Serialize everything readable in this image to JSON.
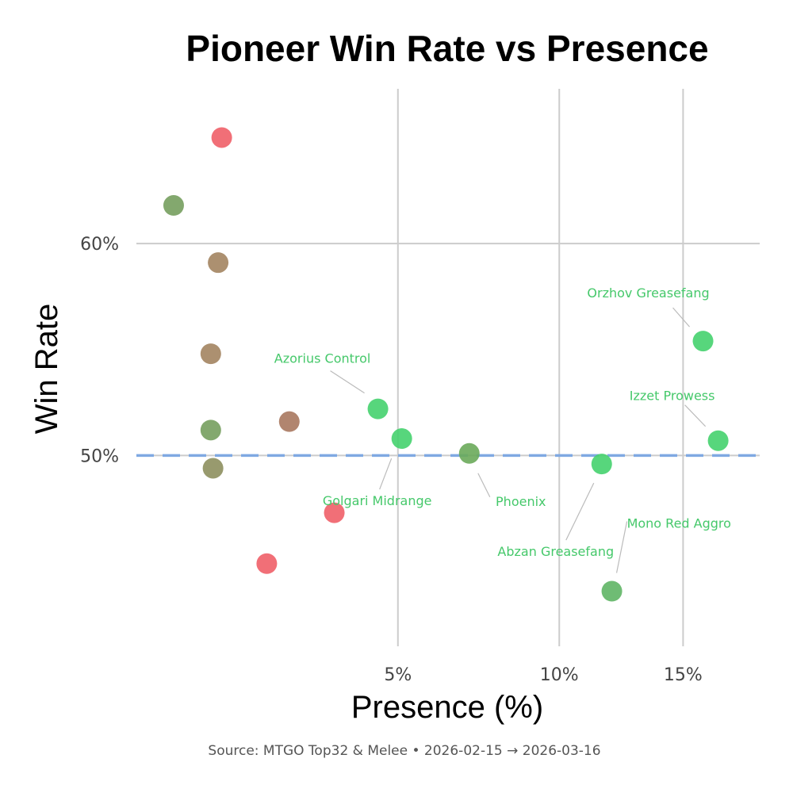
{
  "chart_data": {
    "type": "scatter",
    "title": "Pioneer Win Rate vs Presence",
    "xlabel": "Presence (%)",
    "ylabel": "Win Rate",
    "caption": "Source: MTGO Top32 & Melee  •  2026-02-15 → 2026-03-16",
    "x_scale": "sqrt",
    "xlim": [
      0.54,
      18.6
    ],
    "ylim": [
      41,
      67.3
    ],
    "x_ticks": [
      5,
      10,
      15
    ],
    "x_tick_labels": [
      "5%",
      "10%",
      "15%"
    ],
    "y_ticks": [
      50,
      60
    ],
    "y_tick_labels": [
      "50%",
      "60%"
    ],
    "reference_line": {
      "y": 50,
      "color": "#7ba7e3",
      "style": "dashed"
    },
    "points": [
      {
        "x": 1.5,
        "y": 65.0,
        "color": "#ef5f68",
        "label": ""
      },
      {
        "x": 0.9,
        "y": 61.8,
        "color": "#769f5e",
        "label": ""
      },
      {
        "x": 1.45,
        "y": 59.1,
        "color": "#a38460",
        "label": ""
      },
      {
        "x": 1.35,
        "y": 54.8,
        "color": "#a38460",
        "label": ""
      },
      {
        "x": 1.35,
        "y": 51.2,
        "color": "#769f5e",
        "label": ""
      },
      {
        "x": 1.38,
        "y": 49.4,
        "color": "#8d8f5e",
        "label": ""
      },
      {
        "x": 2.2,
        "y": 44.9,
        "color": "#ef5f68",
        "label": ""
      },
      {
        "x": 3.5,
        "y": 47.3,
        "color": "#ef5f68",
        "label": ""
      },
      {
        "x": 2.6,
        "y": 51.6,
        "color": "#a9785f",
        "label": ""
      },
      {
        "x": 4.5,
        "y": 52.2,
        "color": "#45d26e",
        "label": "Azorius Control"
      },
      {
        "x": 5.1,
        "y": 50.8,
        "color": "#45d26e",
        "label": "Golgari Midrange"
      },
      {
        "x": 7.0,
        "y": 50.1,
        "color": "#6aaa5a",
        "label": "Phoenix"
      },
      {
        "x": 11.6,
        "y": 49.6,
        "color": "#45d26e",
        "label": "Abzan Greasefang"
      },
      {
        "x": 12.0,
        "y": 43.6,
        "color": "#5fb565",
        "label": "Mono Red Aggro"
      },
      {
        "x": 15.9,
        "y": 55.4,
        "color": "#45d26e",
        "label": "Orzhov Greasefang"
      },
      {
        "x": 16.6,
        "y": 50.7,
        "color": "#45d26e",
        "label": "Izzet Prowess"
      }
    ]
  }
}
